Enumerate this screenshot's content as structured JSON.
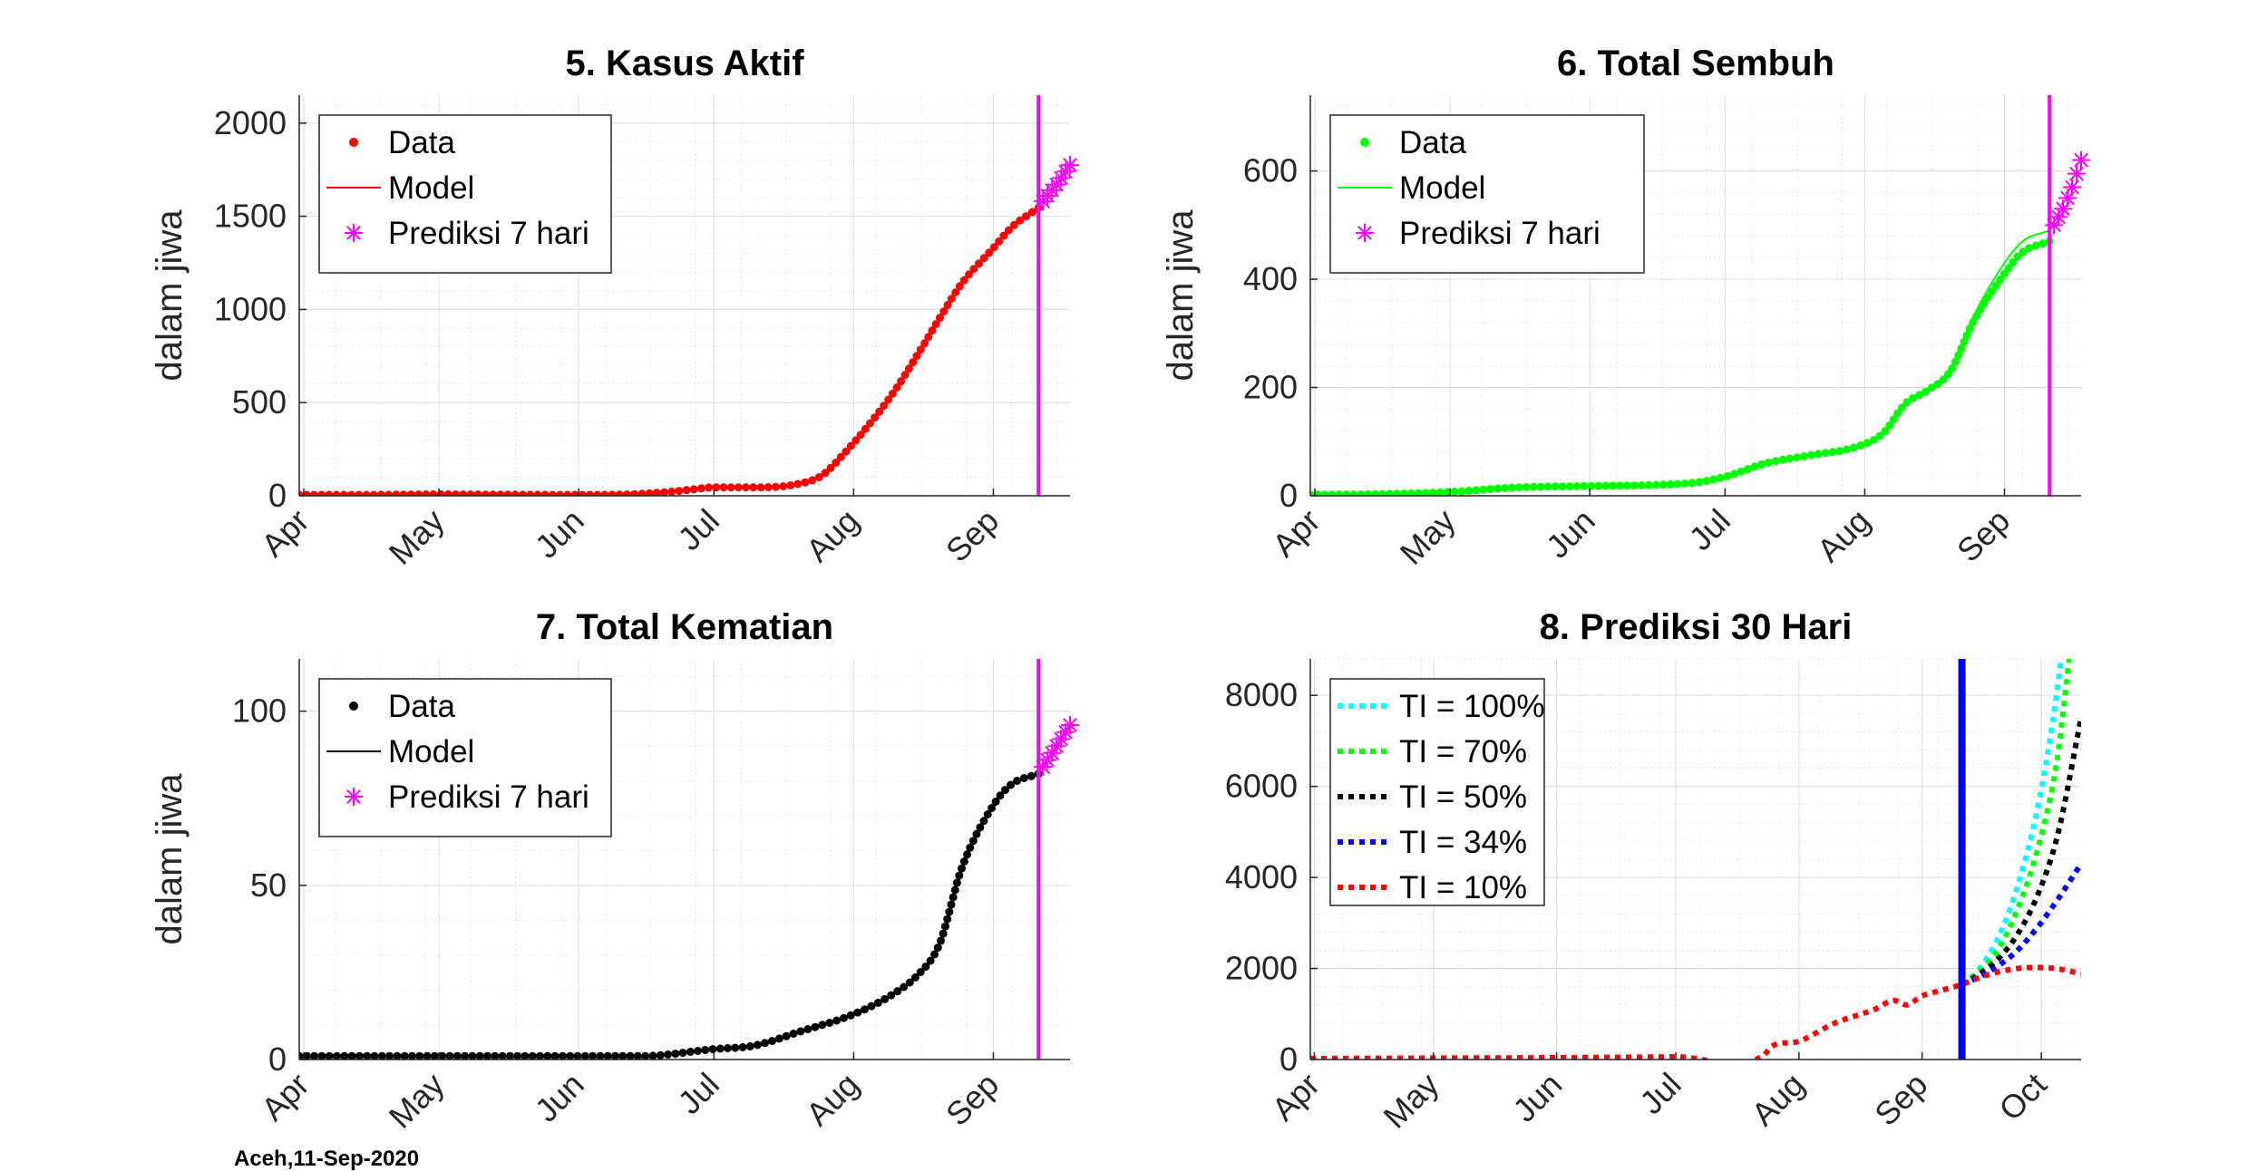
{
  "figure": {
    "footer": "Aceh,11-Sep-2020"
  },
  "chart_data": [
    {
      "type": "line",
      "title": "5. Kasus Aktif",
      "xlabel": "",
      "ylabel": "dalam jiwa",
      "x_ticks": [
        "Apr",
        "May",
        "Jun",
        "Jul",
        "Aug",
        "Sep"
      ],
      "x_range": [
        "2020-03-31",
        "2020-09-18"
      ],
      "ylim": [
        0,
        2150
      ],
      "y_ticks": [
        0,
        500,
        1000,
        1500,
        2000
      ],
      "grid": true,
      "legend": {
        "position": "top-left",
        "entries": [
          "Data",
          "Model",
          "Prediksi 7 hari"
        ]
      },
      "today": "2020-09-11",
      "today_color": "#ff00ff",
      "series": [
        {
          "name": "Data",
          "marker": "dot",
          "color": "#ff0000",
          "x": [
            "2020-03-31",
            "2020-04-15",
            "2020-05-01",
            "2020-05-15",
            "2020-06-01",
            "2020-06-15",
            "2020-06-25",
            "2020-07-01",
            "2020-07-10",
            "2020-07-20",
            "2020-07-25",
            "2020-07-30",
            "2020-08-05",
            "2020-08-10",
            "2020-08-15",
            "2020-08-20",
            "2020-08-25",
            "2020-09-01",
            "2020-09-05",
            "2020-09-11"
          ],
          "y": [
            5,
            5,
            8,
            6,
            5,
            10,
            30,
            45,
            45,
            65,
            110,
            230,
            400,
            560,
            750,
            950,
            1140,
            1330,
            1440,
            1545
          ]
        },
        {
          "name": "Model",
          "marker": "line",
          "color": "#ff0000",
          "x": [
            "2020-03-31",
            "2020-04-15",
            "2020-05-01",
            "2020-05-15",
            "2020-06-01",
            "2020-06-15",
            "2020-06-25",
            "2020-07-01",
            "2020-07-10",
            "2020-07-20",
            "2020-07-25",
            "2020-07-30",
            "2020-08-05",
            "2020-08-10",
            "2020-08-15",
            "2020-08-20",
            "2020-08-25",
            "2020-09-01",
            "2020-09-05",
            "2020-09-11"
          ],
          "y": [
            5,
            5,
            8,
            6,
            5,
            10,
            30,
            45,
            45,
            65,
            110,
            230,
            400,
            560,
            750,
            950,
            1140,
            1330,
            1440,
            1545
          ]
        },
        {
          "name": "Prediksi 7 hari",
          "marker": "asterisk",
          "color": "#ff00ff",
          "x": [
            "2020-09-12",
            "2020-09-13",
            "2020-09-14",
            "2020-09-15",
            "2020-09-16",
            "2020-09-17",
            "2020-09-18"
          ],
          "y": [
            1580,
            1610,
            1640,
            1670,
            1705,
            1740,
            1775
          ]
        }
      ]
    },
    {
      "type": "line",
      "title": "6. Total Sembuh",
      "xlabel": "",
      "ylabel": "dalam jiwa",
      "x_ticks": [
        "Apr",
        "May",
        "Jun",
        "Jul",
        "Aug",
        "Sep"
      ],
      "x_range": [
        "2020-03-31",
        "2020-09-18"
      ],
      "ylim": [
        0,
        740
      ],
      "y_ticks": [
        0,
        200,
        400,
        600
      ],
      "grid": true,
      "legend": {
        "position": "top-left",
        "entries": [
          "Data",
          "Model",
          "Prediksi 7 hari"
        ]
      },
      "today": "2020-09-11",
      "today_color": "#ff00ff",
      "series": [
        {
          "name": "Data",
          "marker": "dot",
          "color": "#00ff00",
          "x": [
            "2020-03-31",
            "2020-04-15",
            "2020-05-01",
            "2020-05-15",
            "2020-06-01",
            "2020-06-15",
            "2020-06-25",
            "2020-07-01",
            "2020-07-10",
            "2020-07-20",
            "2020-07-30",
            "2020-08-05",
            "2020-08-10",
            "2020-08-15",
            "2020-08-20",
            "2020-08-25",
            "2020-09-01",
            "2020-09-05",
            "2020-09-11"
          ],
          "y": [
            2,
            3,
            7,
            15,
            18,
            20,
            25,
            35,
            60,
            75,
            90,
            115,
            170,
            195,
            230,
            320,
            410,
            450,
            470
          ]
        },
        {
          "name": "Model",
          "marker": "line",
          "color": "#00ff00",
          "x": [
            "2020-03-31",
            "2020-04-15",
            "2020-05-01",
            "2020-05-15",
            "2020-06-01",
            "2020-06-15",
            "2020-06-25",
            "2020-07-01",
            "2020-07-10",
            "2020-07-20",
            "2020-07-30",
            "2020-08-05",
            "2020-08-10",
            "2020-08-15",
            "2020-08-20",
            "2020-08-25",
            "2020-09-01",
            "2020-09-05",
            "2020-09-11"
          ],
          "y": [
            2,
            3,
            7,
            15,
            18,
            20,
            25,
            35,
            60,
            75,
            90,
            115,
            170,
            195,
            235,
            330,
            430,
            470,
            490
          ]
        },
        {
          "name": "Prediksi 7 hari",
          "marker": "asterisk",
          "color": "#ff00ff",
          "x": [
            "2020-09-12",
            "2020-09-13",
            "2020-09-14",
            "2020-09-15",
            "2020-09-16",
            "2020-09-17",
            "2020-09-18"
          ],
          "y": [
            500,
            515,
            530,
            550,
            570,
            595,
            620
          ]
        }
      ]
    },
    {
      "type": "line",
      "title": "7. Total Kematian",
      "xlabel": "",
      "ylabel": "dalam jiwa",
      "x_ticks": [
        "Apr",
        "May",
        "Jun",
        "Jul",
        "Aug",
        "Sep"
      ],
      "x_range": [
        "2020-03-31",
        "2020-09-18"
      ],
      "ylim": [
        0,
        115
      ],
      "y_ticks": [
        0,
        50,
        100
      ],
      "grid": true,
      "legend": {
        "position": "top-left",
        "entries": [
          "Data",
          "Model",
          "Prediksi 7 hari"
        ]
      },
      "today": "2020-09-11",
      "today_color": "#ff00ff",
      "series": [
        {
          "name": "Data",
          "marker": "dot",
          "color": "#000000",
          "x": [
            "2020-03-31",
            "2020-04-15",
            "2020-05-01",
            "2020-05-15",
            "2020-06-01",
            "2020-06-15",
            "2020-07-01",
            "2020-07-10",
            "2020-07-20",
            "2020-08-01",
            "2020-08-10",
            "2020-08-15",
            "2020-08-20",
            "2020-08-25",
            "2020-09-01",
            "2020-09-05",
            "2020-09-11"
          ],
          "y": [
            1,
            1,
            1,
            1,
            1,
            1,
            3,
            4,
            8,
            13,
            19,
            24,
            33,
            55,
            73,
            79,
            82
          ]
        },
        {
          "name": "Model",
          "marker": "line",
          "color": "#000000",
          "x": [
            "2020-03-31",
            "2020-04-15",
            "2020-05-01",
            "2020-05-15",
            "2020-06-01",
            "2020-06-15",
            "2020-07-01",
            "2020-07-10",
            "2020-07-20",
            "2020-08-01",
            "2020-08-10",
            "2020-08-15",
            "2020-08-20",
            "2020-08-25",
            "2020-09-01",
            "2020-09-05",
            "2020-09-11"
          ],
          "y": [
            1,
            1,
            1,
            1,
            1,
            1,
            3,
            4,
            8,
            13,
            19,
            24,
            33,
            55,
            73,
            79,
            82
          ]
        },
        {
          "name": "Prediksi 7 hari",
          "marker": "asterisk",
          "color": "#ff00ff",
          "x": [
            "2020-09-12",
            "2020-09-13",
            "2020-09-14",
            "2020-09-15",
            "2020-09-16",
            "2020-09-17",
            "2020-09-18"
          ],
          "y": [
            84,
            86,
            88,
            90,
            92,
            94,
            96
          ]
        }
      ]
    },
    {
      "type": "line",
      "title": "8. Prediksi 30 Hari",
      "xlabel": "",
      "ylabel": "",
      "x_ticks": [
        "Apr",
        "May",
        "Jun",
        "Jul",
        "Aug",
        "Sep",
        "Oct"
      ],
      "x_range": [
        "2020-03-31",
        "2020-10-11"
      ],
      "ylim": [
        0,
        8800
      ],
      "y_ticks": [
        0,
        2000,
        4000,
        6000,
        8000
      ],
      "grid": true,
      "legend": {
        "position": "top-left",
        "entries": [
          "TI = 100%",
          "TI = 70%",
          "TI = 50%",
          "TI = 34%",
          "TI = 10%"
        ]
      },
      "today": "2020-09-11",
      "today_color": "#0000ff",
      "series": [
        {
          "name": "TI = 100%",
          "marker": "dotted",
          "color": "#00ffff",
          "x": [
            "2020-09-11",
            "2020-09-15",
            "2020-09-20",
            "2020-09-25",
            "2020-09-30",
            "2020-10-04",
            "2020-10-06"
          ],
          "y": [
            1650,
            1950,
            2650,
            3800,
            5500,
            7500,
            8800
          ]
        },
        {
          "name": "TI = 70%",
          "marker": "dotted",
          "color": "#00ff00",
          "x": [
            "2020-09-11",
            "2020-09-15",
            "2020-09-20",
            "2020-09-25",
            "2020-09-30",
            "2020-10-05",
            "2020-10-08"
          ],
          "y": [
            1650,
            1900,
            2400,
            3300,
            4600,
            6600,
            8800
          ]
        },
        {
          "name": "TI = 50%",
          "marker": "dotted",
          "color": "#000000",
          "x": [
            "2020-09-11",
            "2020-09-15",
            "2020-09-20",
            "2020-09-25",
            "2020-09-30",
            "2020-10-05",
            "2020-10-11"
          ],
          "y": [
            1650,
            1850,
            2200,
            2750,
            3600,
            4900,
            7500
          ]
        },
        {
          "name": "TI = 34%",
          "marker": "dotted",
          "color": "#0000ff",
          "x": [
            "2020-09-11",
            "2020-09-15",
            "2020-09-20",
            "2020-09-25",
            "2020-09-30",
            "2020-10-05",
            "2020-10-11"
          ],
          "y": [
            1650,
            1800,
            2050,
            2400,
            2900,
            3500,
            4300
          ]
        },
        {
          "name": "TI = 10%",
          "marker": "dotted",
          "color": "#ff0000",
          "x": [
            "2020-03-31",
            "2020-05-01",
            "2020-06-01",
            "2020-07-01",
            "2020-07-23",
            "2020-07-25",
            "2020-08-01",
            "2020-08-10",
            "2020-08-20",
            "2020-08-25",
            "2020-08-28",
            "2020-09-01",
            "2020-09-05",
            "2020-09-11",
            "2020-09-16",
            "2020-09-21",
            "2020-09-26",
            "2020-10-01",
            "2020-10-06",
            "2020-10-11"
          ],
          "y": [
            20,
            30,
            40,
            60,
            80,
            280,
            400,
            800,
            1100,
            1300,
            1200,
            1400,
            1500,
            1650,
            1820,
            1940,
            2010,
            2020,
            1980,
            1880
          ]
        }
      ]
    }
  ]
}
